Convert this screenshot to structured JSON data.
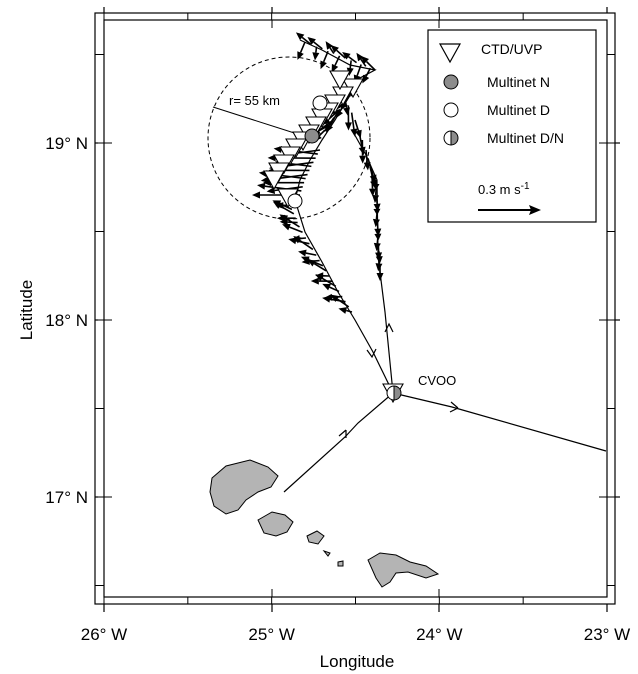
{
  "map": {
    "x_axis": {
      "title": "Longitude",
      "ticks": [
        {
          "label": "26° W",
          "lon": -26
        },
        {
          "label": "25° W",
          "lon": -25
        },
        {
          "label": "24° W",
          "lon": -24
        },
        {
          "label": "23° W",
          "lon": -23
        }
      ],
      "range": [
        -26,
        -23
      ]
    },
    "y_axis": {
      "title": "Latitude",
      "ticks": [
        {
          "label": "17° N",
          "lat": 17
        },
        {
          "label": "18° N",
          "lat": 18
        },
        {
          "label": "19° N",
          "lat": 19
        }
      ],
      "range": [
        16.45,
        19.65
      ]
    },
    "legend": {
      "placement": "top-right",
      "items": [
        {
          "symbol": "triangle-down-open",
          "label": "CTD/UVP"
        },
        {
          "symbol": "circle-gray",
          "label": "Multinet N"
        },
        {
          "symbol": "circle-open",
          "label": "Multinet D"
        },
        {
          "symbol": "circle-half",
          "label": "Multinet D/N"
        }
      ],
      "scale_label": "0.3 m s",
      "scale_sup": "-1",
      "scale_value_ms": 0.3
    },
    "annotations": {
      "radius_label": "r= 55 km",
      "station_label": "CVOO"
    },
    "colors": {
      "land": "#b4b4b4",
      "multinet_n": "#8c8c8c",
      "line": "#000000"
    }
  }
}
